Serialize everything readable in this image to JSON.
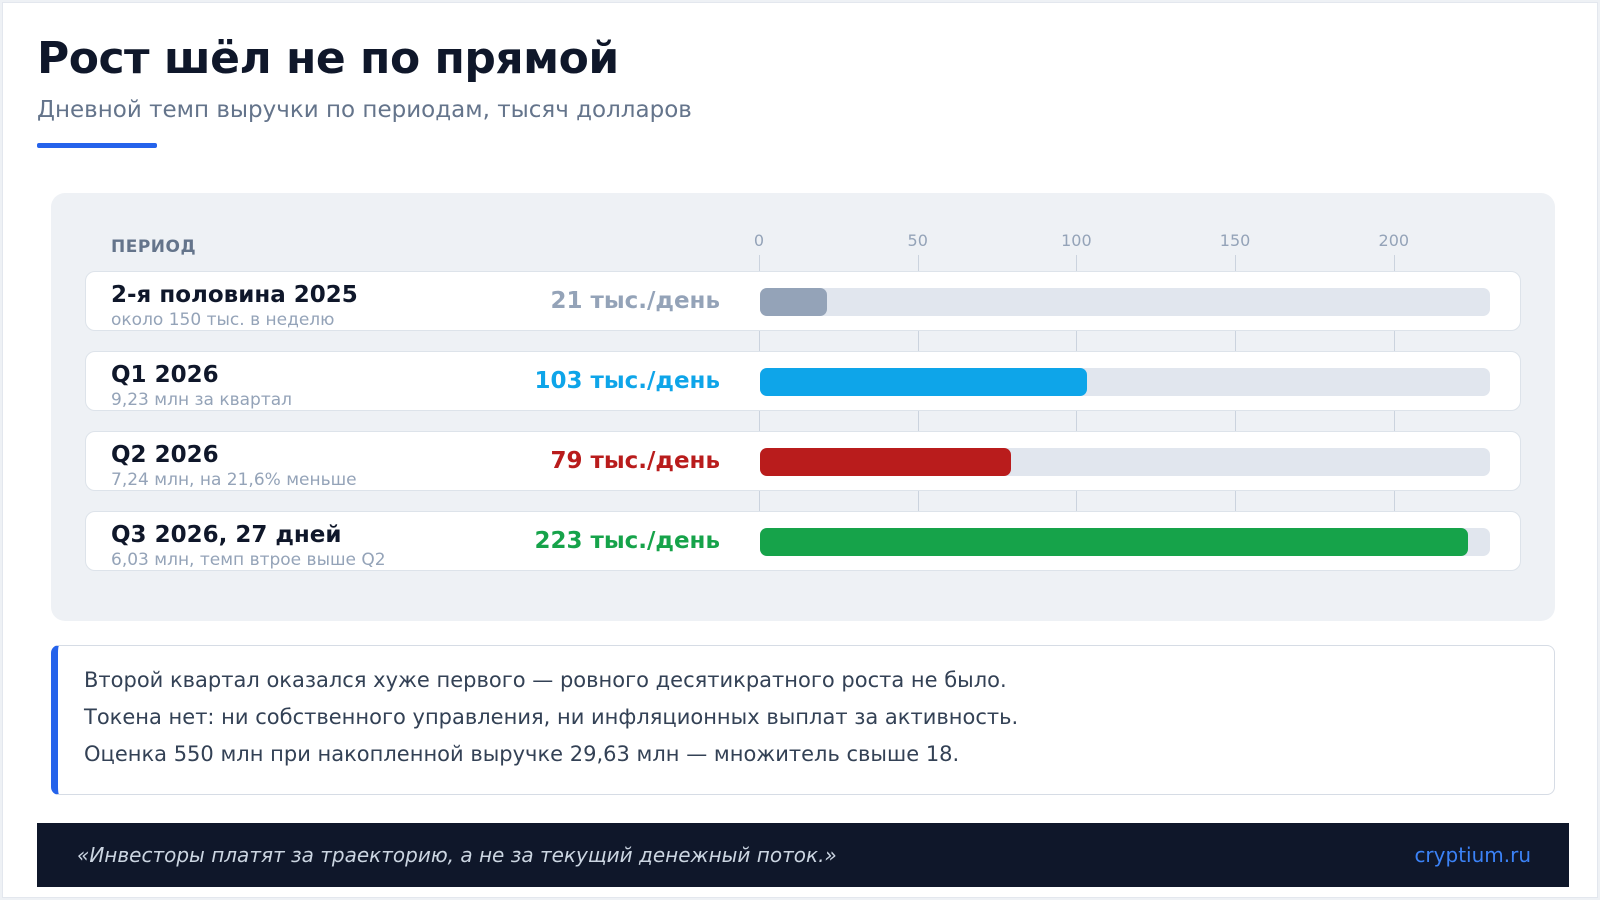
{
  "header": {
    "title": "Рост шёл не по прямой",
    "subtitle": "Дневной темп выручки по периодам, тысяч долларов"
  },
  "chart_data": {
    "type": "bar",
    "orientation": "horizontal",
    "column_header": "ПЕРИОД",
    "xlim": [
      0,
      230
    ],
    "ticks": [
      0,
      50,
      100,
      150,
      200
    ],
    "grid": true,
    "categories": [
      "2-я половина 2025",
      "Q1 2026",
      "Q2 2026",
      "Q3 2026, 27 дней"
    ],
    "values": [
      21,
      103,
      79,
      223
    ],
    "value_labels": [
      "21 тыс./день",
      "103 тыс./день",
      "79 тыс./день",
      "223 тыс./день"
    ],
    "notes": [
      "около 150 тыс. в неделю",
      "9,23 млн за квартал",
      "7,24 млн, на 21,6% меньше",
      "6,03 млн, темп втрое выше Q2"
    ],
    "colors": [
      "#94a3b8",
      "#0ea5e9",
      "#b91c1c",
      "#16a34a"
    ]
  },
  "notes": {
    "lines": [
      "Второй квартал оказался хуже первого — ровного десятикратного роста не было.",
      "Токена нет: ни собственного управления, ни инфляционных выплат за активность.",
      "Оценка 550 млн при накопленной выручке 29,63 млн — множитель свыше 18."
    ]
  },
  "footer": {
    "quote": "«Инвесторы платят за траекторию, а не за текущий денежный поток.»",
    "brand": "cryptium.ru"
  }
}
